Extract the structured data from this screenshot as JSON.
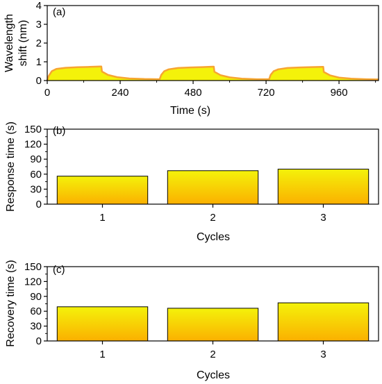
{
  "chart_data": [
    {
      "type": "area",
      "panel_label": "(a)",
      "xlabel": "Time (s)",
      "ylabel_lines": [
        "Wavelength",
        "shift (nm)"
      ],
      "xlim": [
        0,
        1090
      ],
      "ylim": [
        0,
        4
      ],
      "xticks": [
        0,
        240,
        480,
        720,
        960
      ],
      "yticks": [
        0,
        1,
        2,
        3,
        4
      ],
      "series": [
        {
          "x": [
            0,
            5,
            15,
            30,
            60,
            100,
            140,
            175,
            178,
            180,
            200,
            230,
            270,
            320,
            370,
            375,
            385,
            400,
            430,
            470,
            510,
            545,
            548,
            550,
            570,
            600,
            640,
            690,
            730,
            735,
            745,
            760,
            790,
            830,
            870,
            905,
            908,
            910,
            930,
            960,
            1000,
            1050,
            1090
          ],
          "y": [
            0,
            0.25,
            0.5,
            0.62,
            0.68,
            0.71,
            0.73,
            0.75,
            0.75,
            0.48,
            0.3,
            0.18,
            0.11,
            0.08,
            0.07,
            0.3,
            0.5,
            0.6,
            0.67,
            0.7,
            0.72,
            0.74,
            0.74,
            0.47,
            0.29,
            0.17,
            0.1,
            0.07,
            0.07,
            0.3,
            0.5,
            0.6,
            0.67,
            0.7,
            0.72,
            0.73,
            0.73,
            0.46,
            0.28,
            0.16,
            0.1,
            0.07,
            0.06
          ]
        }
      ],
      "colors": {
        "line": "#f7a531",
        "fill": "#f4f20a"
      }
    },
    {
      "type": "bar",
      "panel_label": "(b)",
      "xlabel": "Cycles",
      "ylabel": "Response time (s)",
      "categories": [
        "1",
        "2",
        "3"
      ],
      "values": [
        56,
        67,
        70
      ],
      "ylim": [
        0,
        150
      ],
      "yticks": [
        0,
        30,
        60,
        90,
        120,
        150
      ],
      "colors": {
        "top": "#f4f20a",
        "bottom": "#fbb000"
      }
    },
    {
      "type": "bar",
      "panel_label": "(c)",
      "xlabel": "Cycles",
      "ylabel": "Recovery time (s)",
      "categories": [
        "1",
        "2",
        "3"
      ],
      "values": [
        69,
        66,
        77
      ],
      "ylim": [
        0,
        150
      ],
      "yticks": [
        0,
        30,
        60,
        90,
        120,
        150
      ],
      "colors": {
        "top": "#f4f20a",
        "bottom": "#fbb000"
      }
    }
  ]
}
